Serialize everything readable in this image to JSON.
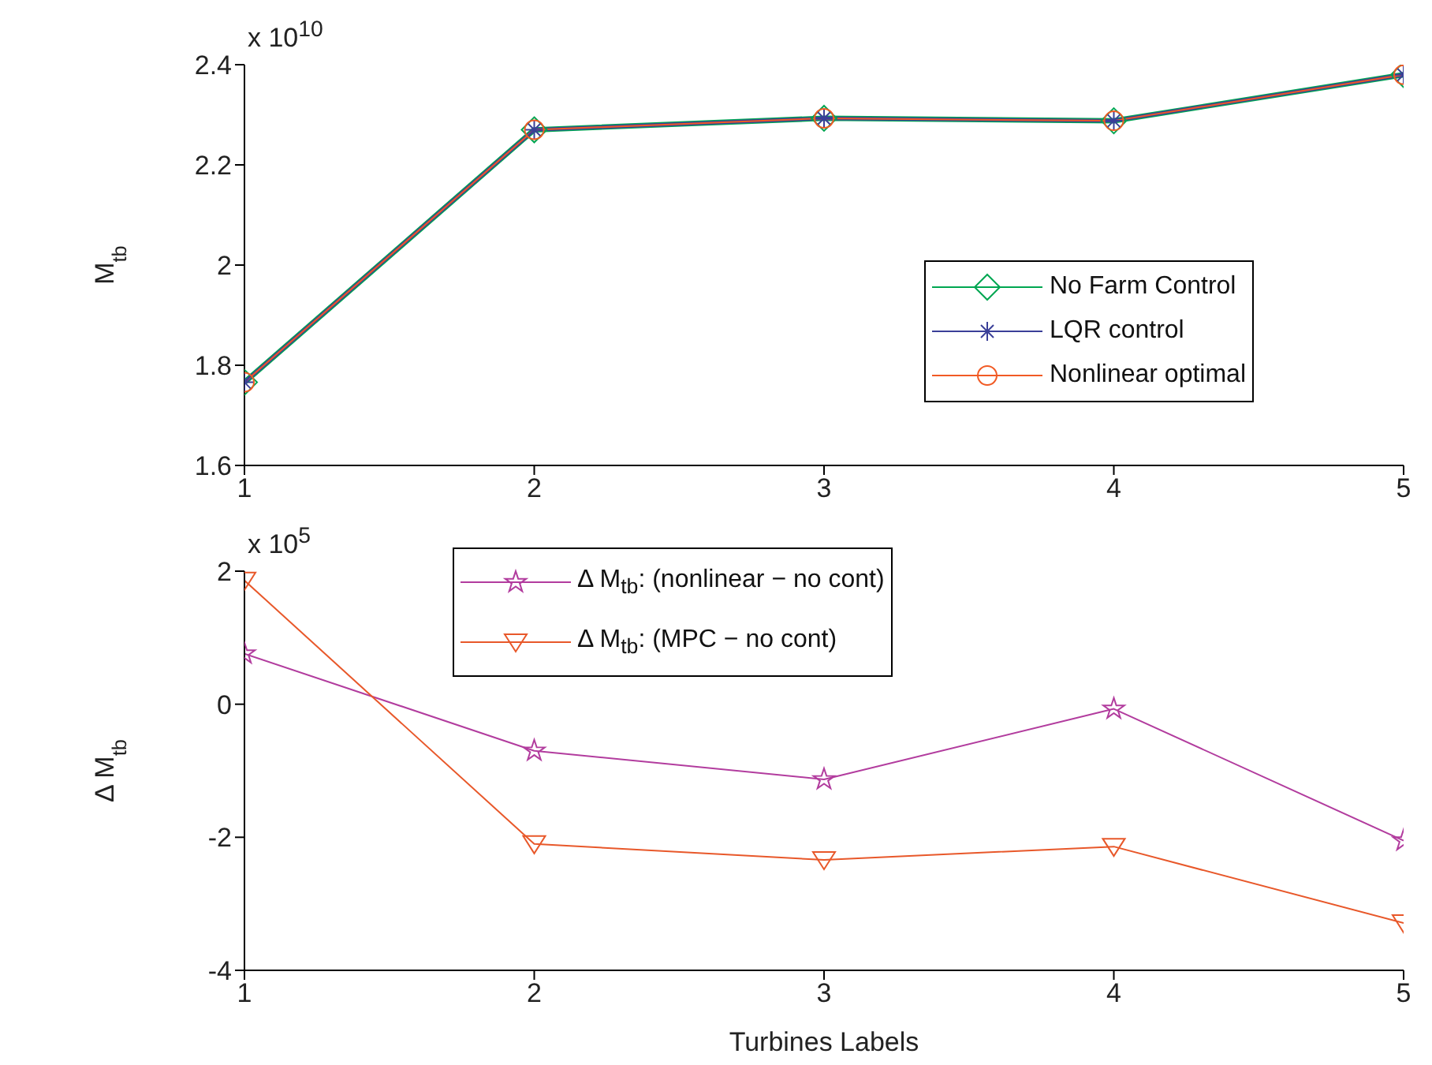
{
  "chart_data": [
    {
      "type": "line",
      "ylabel": "M$_{tb}$",
      "x": [
        1,
        2,
        3,
        4,
        5
      ],
      "xlim": [
        1,
        5
      ],
      "xticks": [
        1,
        2,
        3,
        4,
        5
      ],
      "ylim": [
        1.6,
        2.4
      ],
      "yticks": [
        1.6,
        1.8,
        2,
        2.2,
        2.4
      ],
      "annotations": [
        "x 10$^{10}$"
      ],
      "legend": "right",
      "grid": false,
      "series": [
        {
          "name": "No Farm Control",
          "color": "#00a651",
          "marker": "diamond",
          "values": [
            1.766,
            2.27,
            2.293,
            2.288,
            2.38
          ]
        },
        {
          "name": "LQR control",
          "color": "#3a3f98",
          "marker": "cross",
          "values": [
            1.766,
            2.27,
            2.293,
            2.288,
            2.38
          ]
        },
        {
          "name": "Nonlinear optimal",
          "color": "#f15a24",
          "marker": "circle",
          "values": [
            1.766,
            2.27,
            2.293,
            2.288,
            2.38
          ]
        }
      ]
    },
    {
      "type": "line",
      "ylabel": "Δ M$_{tb}$",
      "xlabel": "Turbines Labels",
      "x": [
        1,
        2,
        3,
        4,
        5
      ],
      "xlim": [
        1,
        5
      ],
      "xticks": [
        1,
        2,
        3,
        4,
        5
      ],
      "ylim": [
        -4,
        2
      ],
      "yticks": [
        -4,
        -2,
        0,
        2
      ],
      "annotations": [
        "x 10$^{5}$"
      ],
      "legend": "top",
      "grid": false,
      "series": [
        {
          "name": "Δ M$_{tb}$: (nonlinear − no cont)",
          "color": "#b23c9e",
          "marker": "star",
          "values": [
            0.76,
            -0.7,
            -1.13,
            -0.07,
            -2.05
          ]
        },
        {
          "name": "Δ M$_{tb}$: (MPC − no cont)",
          "color": "#e8582a",
          "marker": "triangle",
          "values": [
            1.86,
            -2.1,
            -2.34,
            -2.14,
            -3.29
          ]
        }
      ]
    }
  ]
}
